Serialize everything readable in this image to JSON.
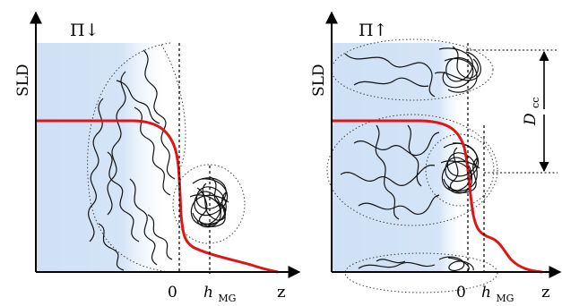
{
  "left_panel": {
    "pressure_label": "Π↓",
    "y_axis_label": "SLD",
    "x_axis_label": "z",
    "zero_tick_label": "0",
    "h_label_main": "h",
    "h_label_sub": "MG"
  },
  "right_panel": {
    "pressure_label": "Π↑",
    "y_axis_label": "SLD",
    "x_axis_label": "z",
    "zero_tick_label": "0",
    "h_label_main": "h",
    "h_label_sub": "MG",
    "distance_label_main": "D",
    "distance_label_sub": "cc"
  },
  "colors": {
    "interface_fill": "#cfe0f5",
    "sld_profile": "#e01515",
    "axes": "#000000",
    "polymer_chain": "#111111",
    "outline_dotted": "#333333"
  }
}
